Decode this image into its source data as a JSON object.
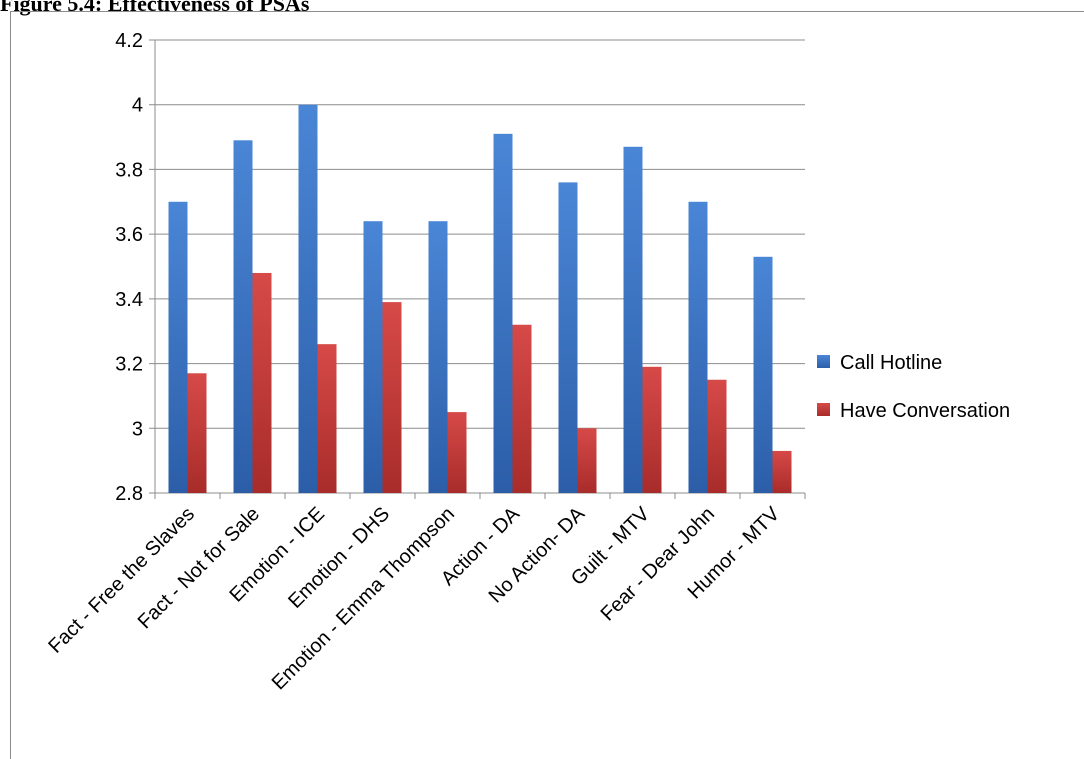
{
  "figure_heading": "Figure 5.4: Effectiveness of PSAs",
  "chart_data": {
    "type": "bar",
    "categories": [
      "Fact - Free the Slaves",
      "Fact - Not for Sale",
      "Emotion - ICE",
      "Emotion - DHS",
      "Emotion - Emma Thompson",
      "Action  - DA",
      "No Action- DA",
      "Guilt - MTV",
      "Fear - Dear John",
      "Humor - MTV"
    ],
    "series": [
      {
        "name": "Call Hotline",
        "color": "#3b73c4",
        "values": [
          3.7,
          3.89,
          4.0,
          3.64,
          3.64,
          3.91,
          3.76,
          3.87,
          3.7,
          3.53
        ]
      },
      {
        "name": "Have Conversation",
        "color": "#c63a38",
        "values": [
          3.17,
          3.48,
          3.26,
          3.39,
          3.05,
          3.32,
          3.0,
          3.19,
          3.15,
          2.93
        ]
      }
    ],
    "ylim": [
      2.8,
      4.2
    ],
    "yticks": [
      "2.8",
      "3",
      "3.2",
      "3.4",
      "3.6",
      "3.8",
      "4",
      "4.2"
    ],
    "grid": true,
    "legend": "right"
  }
}
